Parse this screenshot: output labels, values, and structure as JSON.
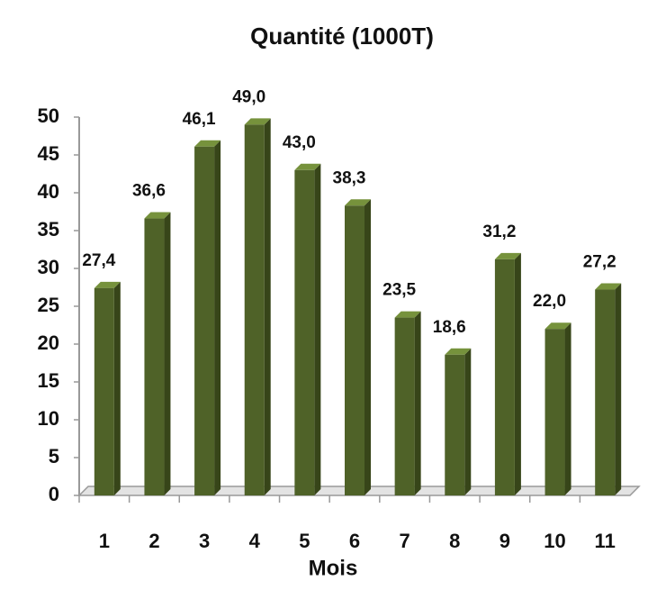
{
  "chart_data": {
    "type": "bar",
    "title": "Quantité (1000T)",
    "x_label": "Mois",
    "categories": [
      "1",
      "2",
      "3",
      "4",
      "5",
      "6",
      "7",
      "8",
      "9",
      "10",
      "11"
    ],
    "values": [
      27.4,
      36.6,
      46.1,
      49.0,
      43.0,
      38.3,
      23.5,
      18.6,
      31.2,
      22.0,
      27.2
    ],
    "value_labels": [
      "27,4",
      "36,6",
      "46,1",
      "49,0",
      "43,0",
      "38,3",
      "23,5",
      "18,6",
      "31,2",
      "22,0",
      "27,2"
    ],
    "color": "#4f6228",
    "ylim": [
      0,
      50
    ],
    "yticks": [
      0,
      5,
      10,
      15,
      20,
      25,
      30,
      35,
      40,
      45,
      50
    ]
  }
}
